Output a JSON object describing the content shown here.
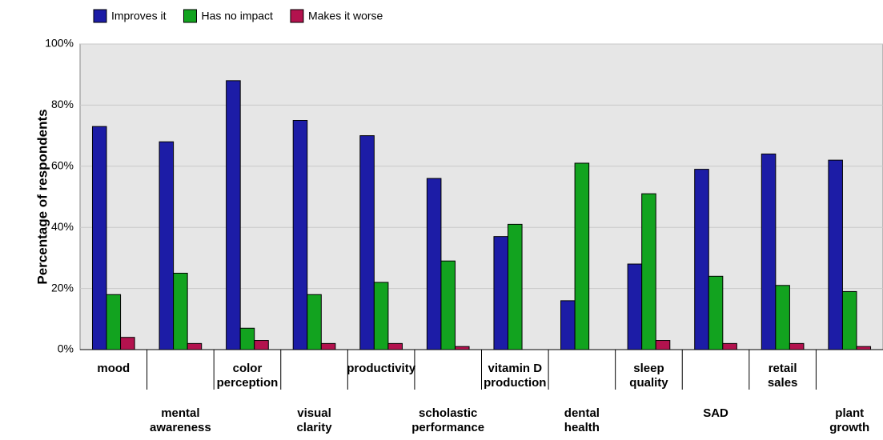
{
  "chart_data": {
    "type": "bar",
    "y_label": "Percentage of respondents",
    "categories": [
      "mood",
      "mental\nawareness",
      "color\nperception",
      "visual\nclarity",
      "productivity",
      "scholastic\nperformance",
      "vitamin D\nproduction",
      "dental\nhealth",
      "sleep\nquality",
      "SAD",
      "retail\nsales",
      "plant\ngrowth"
    ],
    "series": [
      {
        "name": "Improves it",
        "color": "#1c1ca6",
        "values": [
          73,
          68,
          88,
          75,
          70,
          56,
          37,
          16,
          28,
          59,
          64,
          62
        ]
      },
      {
        "name": "Has no impact",
        "color": "#12a31f",
        "values": [
          18,
          25,
          7,
          18,
          22,
          29,
          41,
          61,
          51,
          24,
          21,
          19
        ]
      },
      {
        "name": "Makes it worse",
        "color": "#b3124e",
        "values": [
          4,
          2,
          3,
          2,
          2,
          1,
          0,
          0,
          3,
          2,
          2,
          1
        ]
      }
    ],
    "ylim": [
      0,
      100
    ],
    "yticks": [
      {
        "value": 0,
        "label": "0%"
      },
      {
        "value": 20,
        "label": "20%"
      },
      {
        "value": 40,
        "label": "40%"
      },
      {
        "value": 60,
        "label": "60%"
      },
      {
        "value": 80,
        "label": "80%"
      },
      {
        "value": 100,
        "label": "100%"
      }
    ],
    "grid": true
  }
}
